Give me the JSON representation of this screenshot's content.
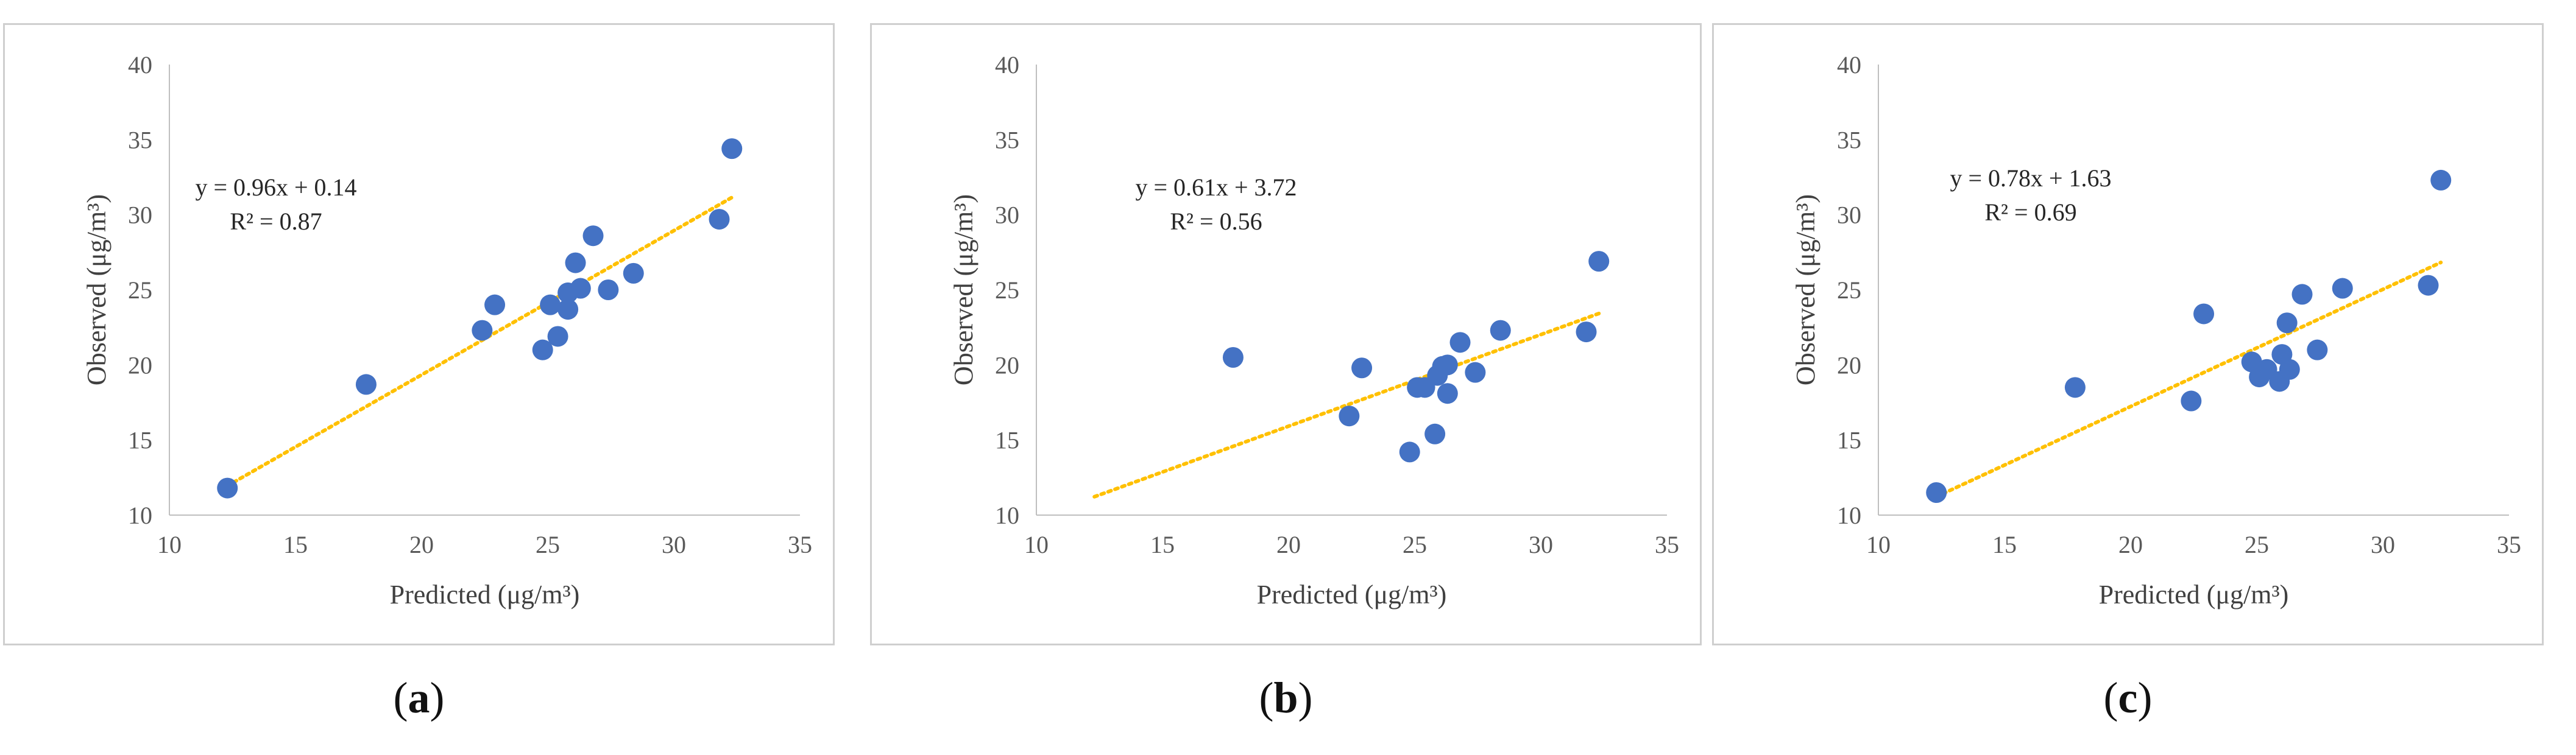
{
  "chart_data": [
    {
      "type": "scatter",
      "panel": "a",
      "xlabel": "Predicted (μg/m³)",
      "ylabel": "Observed (μg/m³)",
      "xlim": [
        10,
        35
      ],
      "ylim": [
        10,
        40
      ],
      "xticks": [
        10,
        15,
        20,
        25,
        30,
        35
      ],
      "yticks": [
        10,
        15,
        20,
        25,
        30,
        35,
        40
      ],
      "x": [
        12.3,
        17.8,
        22.4,
        22.9,
        24.8,
        25.1,
        25.4,
        25.8,
        25.8,
        26.1,
        26.3,
        26.8,
        27.4,
        28.4,
        31.8,
        32.3
      ],
      "y": [
        11.8,
        18.7,
        22.3,
        24.0,
        21.0,
        24.0,
        21.9,
        23.7,
        24.8,
        26.8,
        25.1,
        28.6,
        25.0,
        26.1,
        29.7,
        34.4
      ],
      "trendline": {
        "slope": 0.96,
        "intercept": 0.14,
        "x_range": [
          12.3,
          32.3
        ]
      },
      "equation": "y = 0.96x + 0.14",
      "r2_label": "R² = 0.87",
      "point_color": "#4472c4",
      "trend_color": "#ffc000"
    },
    {
      "type": "scatter",
      "panel": "b",
      "xlabel": "Predicted (μg/m³)",
      "ylabel": "Observed (μg/m³)",
      "xlim": [
        10,
        35
      ],
      "ylim": [
        10,
        40
      ],
      "xticks": [
        10,
        15,
        20,
        25,
        30,
        35
      ],
      "yticks": [
        10,
        15,
        20,
        25,
        30,
        35,
        40
      ],
      "x": [
        17.8,
        22.4,
        22.9,
        24.8,
        25.1,
        25.4,
        25.8,
        25.9,
        26.1,
        26.3,
        26.3,
        26.8,
        27.4,
        28.4,
        31.8,
        32.3
      ],
      "y": [
        20.5,
        16.6,
        19.8,
        14.2,
        18.5,
        18.5,
        15.4,
        19.3,
        19.9,
        20.0,
        18.1,
        21.5,
        19.5,
        22.3,
        22.2,
        26.9
      ],
      "trendline": {
        "slope": 0.61,
        "intercept": 3.72,
        "x_range": [
          12.3,
          32.3
        ]
      },
      "equation": "y = 0.61x + 3.72",
      "r2_label": "R² = 0.56",
      "point_color": "#4472c4",
      "trend_color": "#ffc000"
    },
    {
      "type": "scatter",
      "panel": "c",
      "xlabel": "Predicted (μg/m³)",
      "ylabel": "Observed (μg/m³)",
      "xlim": [
        10,
        35
      ],
      "ylim": [
        10,
        40
      ],
      "xticks": [
        10,
        15,
        20,
        25,
        30,
        35
      ],
      "yticks": [
        10,
        15,
        20,
        25,
        30,
        35,
        40
      ],
      "x": [
        12.3,
        17.8,
        22.4,
        22.9,
        24.8,
        25.1,
        25.4,
        25.9,
        26.0,
        26.2,
        26.3,
        26.8,
        27.4,
        28.4,
        31.8,
        32.3
      ],
      "y": [
        11.5,
        18.5,
        17.6,
        23.4,
        20.2,
        19.2,
        19.7,
        18.9,
        20.7,
        22.8,
        19.7,
        24.7,
        21.0,
        25.1,
        25.3,
        32.3
      ],
      "trendline": {
        "slope": 0.78,
        "intercept": 1.63,
        "x_range": [
          12.3,
          32.3
        ]
      },
      "equation": "y = 0.78x + 1.63",
      "r2_label": "R² = 0.69",
      "point_color": "#4472c4",
      "trend_color": "#ffc000"
    }
  ],
  "captions": [
    {
      "open": "(",
      "letter": "a",
      "close": ")"
    },
    {
      "open": "(",
      "letter": "b",
      "close": ")"
    },
    {
      "open": "(",
      "letter": "c",
      "close": ")"
    }
  ]
}
